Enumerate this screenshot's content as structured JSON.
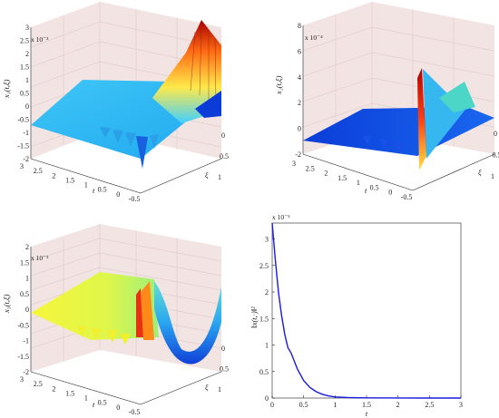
{
  "charts": [
    {
      "id": "p1",
      "type": "surface3d",
      "zlabel": "x₁(t,ξ)",
      "exponent": "x 10⁻³",
      "xlabel": "t",
      "ylabel": "ξ",
      "zticks": [
        "3",
        "2.5",
        "2",
        "1.5",
        "1",
        "0.5",
        "0",
        "-0.5",
        "-1",
        "-1.5",
        "-2"
      ],
      "tticks": [
        "3",
        "2.5",
        "2",
        "1.5",
        "1",
        "0.5",
        "0",
        "-0.5"
      ],
      "xiticks": [
        "0",
        "0.5",
        "1"
      ],
      "colormap": "jet"
    },
    {
      "id": "p2",
      "type": "surface3d",
      "zlabel": "x₂(t,ξ)",
      "exponent": "x 10⁻⁴",
      "xlabel": "t",
      "ylabel": "ξ",
      "zticks": [
        "8",
        "6",
        "4",
        "2",
        "0",
        "-2"
      ],
      "tticks": [
        "3",
        "2.5",
        "2",
        "1.5",
        "1",
        "0.5",
        "0",
        "-0.5"
      ],
      "xiticks": [
        "0",
        "0.5",
        "1"
      ],
      "colormap": "jet"
    },
    {
      "id": "p3",
      "type": "surface3d",
      "zlabel": "x₃(t,ξ)",
      "exponent": "x 10⁻³",
      "xlabel": "t",
      "ylabel": "ξ",
      "zticks": [
        "2",
        "1.5",
        "1",
        "0.5",
        "0",
        "-0.5",
        "-1",
        "-1.5",
        "-2"
      ],
      "tticks": [
        "3",
        "2.5",
        "2",
        "1.5",
        "1",
        "0.5",
        "0",
        "-0.5"
      ],
      "xiticks": [
        "0",
        "0.5",
        "1"
      ],
      "colormap": "jet"
    }
  ],
  "chart_data": {
    "type": "line",
    "title": "",
    "xlabel": "t",
    "ylabel": "‖x(t,·)‖²",
    "exponent": "x 10⁻⁵",
    "xlim": [
      0,
      3
    ],
    "ylim": [
      0,
      3.3
    ],
    "xticks": [
      "0",
      "0.5",
      "1",
      "1.5",
      "2",
      "2.5",
      "3"
    ],
    "yticks": [
      "0",
      "0.5",
      "1",
      "1.5",
      "2",
      "2.5",
      "3"
    ],
    "grid": false,
    "series": [
      {
        "color": "#1a1ae0",
        "x": [
          0,
          0.05,
          0.1,
          0.15,
          0.2,
          0.25,
          0.3,
          0.35,
          0.4,
          0.5,
          0.6,
          0.7,
          0.8,
          0.9,
          1.0,
          1.2,
          1.5,
          2.0,
          2.5,
          3.0
        ],
        "y": [
          3.3,
          2.6,
          2.0,
          1.55,
          1.2,
          0.95,
          0.85,
          0.7,
          0.55,
          0.33,
          0.2,
          0.12,
          0.07,
          0.04,
          0.02,
          0.01,
          0.003,
          0.001,
          0.0,
          0.0
        ]
      }
    ]
  }
}
